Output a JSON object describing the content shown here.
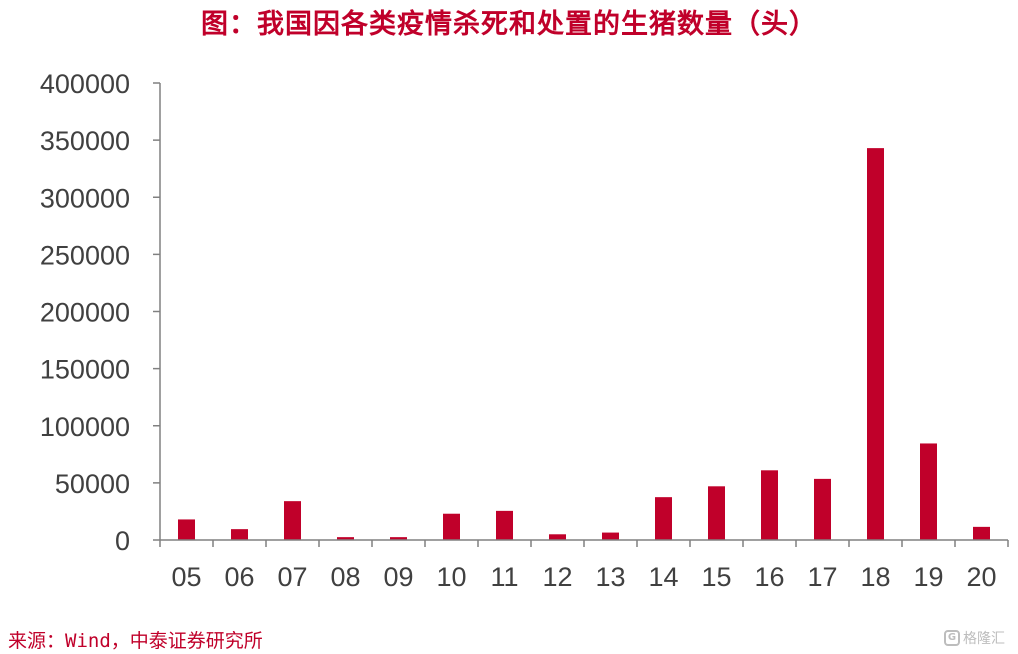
{
  "title": "图：我国因各类疫情杀死和处置的生猪数量（头）",
  "source": "来源：Wind，中泰证券研究所",
  "watermark": {
    "icon": "G",
    "text": "格隆汇"
  },
  "colors": {
    "bar": "#c0002a",
    "title": "#c0002a",
    "axis": "#808080",
    "tick_text": "#404040"
  },
  "chart_data": {
    "type": "bar",
    "title": "图：我国因各类疫情杀死和处置的生猪数量（头）",
    "xlabel": "",
    "ylabel": "",
    "categories": [
      "05",
      "06",
      "07",
      "08",
      "09",
      "10",
      "11",
      "12",
      "13",
      "14",
      "15",
      "16",
      "17",
      "18",
      "19",
      "20"
    ],
    "values": [
      18000,
      9500,
      34000,
      2500,
      2500,
      23000,
      25500,
      5000,
      6500,
      37500,
      47000,
      61000,
      53500,
      343000,
      84500,
      11500
    ],
    "ylim": [
      0,
      400000
    ],
    "yticks": [
      0,
      50000,
      100000,
      150000,
      200000,
      250000,
      300000,
      350000,
      400000
    ],
    "ytick_labels": [
      "0",
      "50000",
      "100000",
      "150000",
      "200000",
      "250000",
      "300000",
      "350000",
      "400000"
    ],
    "grid": false,
    "legend": "none"
  }
}
